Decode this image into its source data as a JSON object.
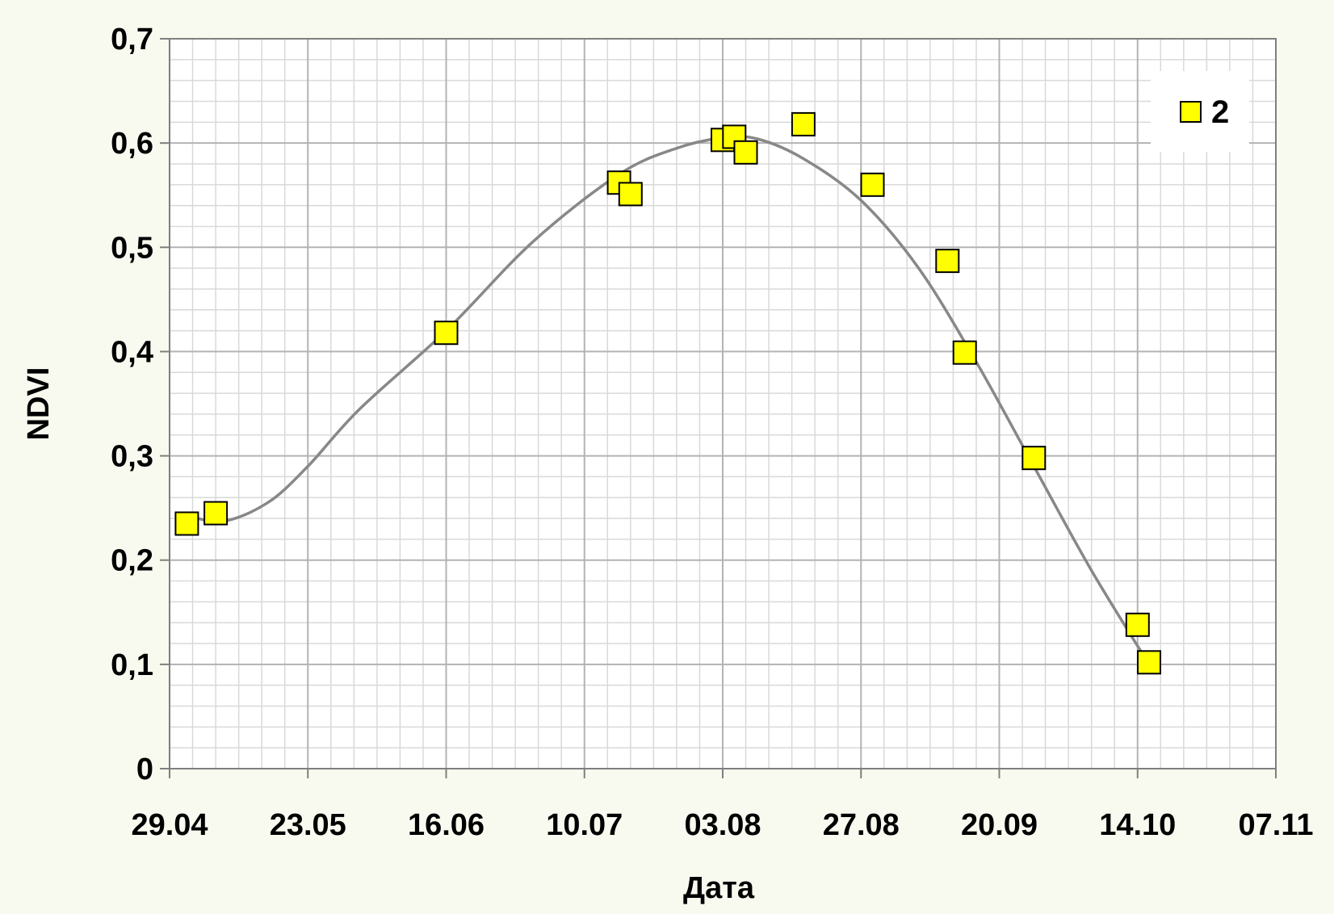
{
  "chart_data": {
    "type": "scatter",
    "title": "",
    "xlabel": "Дата",
    "ylabel": "NDVI",
    "x_tick_labels": [
      "29.04",
      "23.05",
      "16.06",
      "10.07",
      "03.08",
      "27.08",
      "20.09",
      "14.10",
      "07.11"
    ],
    "y_tick_labels": [
      "0",
      "0,1",
      "0,2",
      "0,3",
      "0,4",
      "0,5",
      "0,6",
      "0,7"
    ],
    "y_ticks": [
      0,
      0.1,
      0.2,
      0.3,
      0.4,
      0.5,
      0.6,
      0.7
    ],
    "xlim": [
      "29.04",
      "07.11"
    ],
    "ylim": [
      0,
      0.7
    ],
    "grid": true,
    "legend_position": "top-right",
    "series": [
      {
        "name": "2",
        "marker": "square",
        "color": "#ffff00",
        "edge_color": "#000000",
        "points": [
          {
            "x": "02.05",
            "y": 0.235
          },
          {
            "x": "07.05",
            "y": 0.245
          },
          {
            "x": "16.06",
            "y": 0.418
          },
          {
            "x": "16.07",
            "y": 0.562
          },
          {
            "x": "18.07",
            "y": 0.551
          },
          {
            "x": "03.08",
            "y": 0.603
          },
          {
            "x": "05.08",
            "y": 0.606
          },
          {
            "x": "07.08",
            "y": 0.591
          },
          {
            "x": "17.08",
            "y": 0.618
          },
          {
            "x": "29.08",
            "y": 0.56
          },
          {
            "x": "11.09",
            "y": 0.487
          },
          {
            "x": "14.09",
            "y": 0.399
          },
          {
            "x": "26.09",
            "y": 0.298
          },
          {
            "x": "14.10",
            "y": 0.138
          },
          {
            "x": "16.10",
            "y": 0.102
          }
        ]
      }
    ],
    "trendline": {
      "color": "#888888",
      "points": [
        {
          "x": "01.05",
          "y": 0.245
        },
        {
          "x": "08.05",
          "y": 0.237
        },
        {
          "x": "16.05",
          "y": 0.255
        },
        {
          "x": "23.05",
          "y": 0.29
        },
        {
          "x": "01.06",
          "y": 0.345
        },
        {
          "x": "16.06",
          "y": 0.42
        },
        {
          "x": "01.07",
          "y": 0.505
        },
        {
          "x": "16.07",
          "y": 0.57
        },
        {
          "x": "26.07",
          "y": 0.595
        },
        {
          "x": "03.08",
          "y": 0.605
        },
        {
          "x": "09.08",
          "y": 0.604
        },
        {
          "x": "17.08",
          "y": 0.585
        },
        {
          "x": "27.08",
          "y": 0.545
        },
        {
          "x": "06.09",
          "y": 0.48
        },
        {
          "x": "16.09",
          "y": 0.39
        },
        {
          "x": "26.09",
          "y": 0.29
        },
        {
          "x": "06.10",
          "y": 0.19
        },
        {
          "x": "16.10",
          "y": 0.1
        }
      ]
    }
  }
}
